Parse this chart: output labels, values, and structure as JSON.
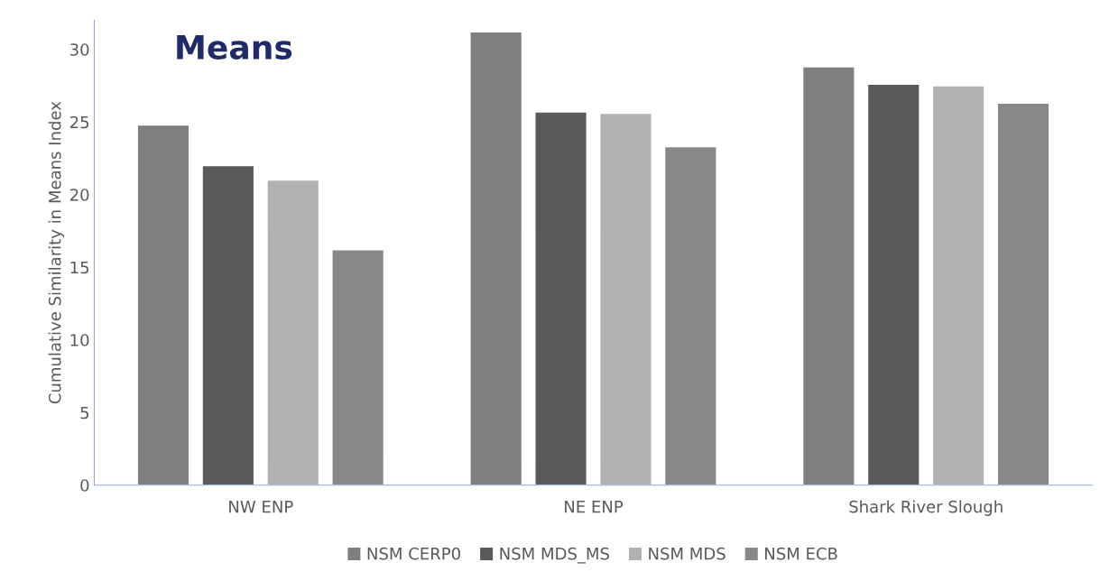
{
  "chart_data": {
    "type": "bar",
    "title": "Means",
    "ylabel": "Cumulative Similarity in Means Index",
    "categories": [
      "NW ENP",
      "NE ENP",
      "Shark River Slough"
    ],
    "series": [
      {
        "name": "NSM CERP0",
        "color": "#7f7f7f",
        "values": [
          24.8,
          31.2,
          28.8
        ]
      },
      {
        "name": "NSM MDS_MS",
        "color": "#5a5a5a",
        "values": [
          22.0,
          25.7,
          27.6
        ]
      },
      {
        "name": "NSM MDS",
        "color": "#b2b2b2",
        "values": [
          21.0,
          25.6,
          27.5
        ]
      },
      {
        "name": "NSM ECB",
        "color": "#888888",
        "values": [
          16.2,
          23.3,
          26.3
        ]
      }
    ],
    "ylim": [
      0,
      32
    ],
    "yticks": [
      0,
      5,
      10,
      15,
      20,
      25,
      30
    ],
    "grid": false,
    "legend": "bottom"
  }
}
